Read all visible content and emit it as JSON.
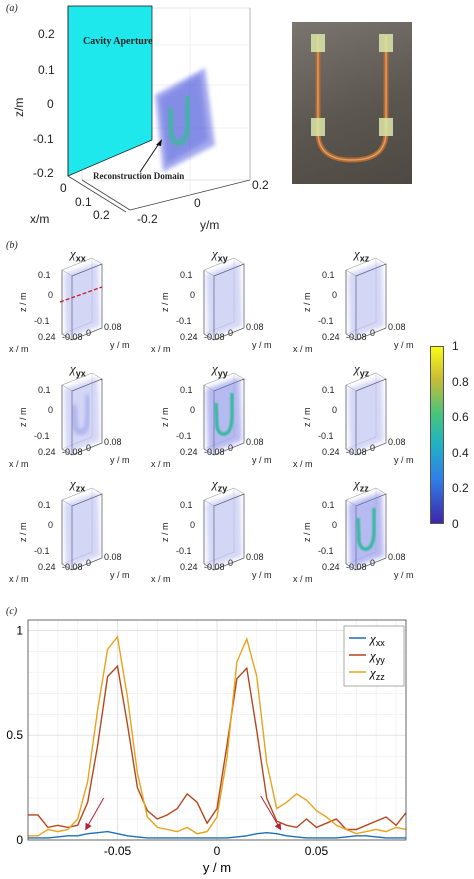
{
  "panel_a": {
    "label": "(a)",
    "z_ticks": [
      "0.2",
      "0.1",
      "0",
      "-0.1",
      "-0.2"
    ],
    "z_axis_label": "z/m",
    "x_ticks": [
      "0",
      "0.1",
      "0.2"
    ],
    "x_axis_label": "x/m",
    "y_ticks": [
      "-0.2",
      "0",
      "0.2"
    ],
    "y_axis_label": "y/m",
    "aperture_label": "Cavity Aperture",
    "domain_label": "Reconstruction Domain"
  },
  "panel_b": {
    "label": "(b)",
    "cells": [
      {
        "title_sub": "xx",
        "shape": "none",
        "dashed_line": true
      },
      {
        "title_sub": "xy",
        "shape": "none"
      },
      {
        "title_sub": "xz",
        "shape": "none"
      },
      {
        "title_sub": "yx",
        "shape": "faint"
      },
      {
        "title_sub": "yy",
        "shape": "u"
      },
      {
        "title_sub": "yz",
        "shape": "none"
      },
      {
        "title_sub": "zx",
        "shape": "none"
      },
      {
        "title_sub": "zy",
        "shape": "none"
      },
      {
        "title_sub": "zz",
        "shape": "u"
      }
    ],
    "chi": "χ",
    "z_ticks": [
      "0.1",
      "0",
      "-0.1"
    ],
    "z_axis_label": "z / m",
    "x_tick_a": "0.24",
    "x_tick_b": "-0.08",
    "y_tick_a": "0",
    "y_tick_b": "0.08",
    "x_axis_label": "x / m",
    "y_axis_label": "y / m",
    "colorbar_ticks": [
      "1",
      "0.8",
      "0.6",
      "0.4",
      "0.2",
      "0"
    ],
    "colormap": [
      "#3e26a8",
      "#2f7fe8",
      "#1fb3c4",
      "#47c57a",
      "#c9bc35",
      "#f9fb15"
    ]
  },
  "panel_c": {
    "label": "(c)",
    "chart_data": {
      "type": "line",
      "xlabel": "y / m",
      "ylabel": "",
      "xlim": [
        -0.095,
        0.095
      ],
      "ylim": [
        0,
        1.05
      ],
      "x_ticks": [
        -0.05,
        0,
        0.05
      ],
      "x_tick_labels": [
        "-0.05",
        "0",
        "0.05"
      ],
      "y_ticks": [
        0,
        0.5,
        1
      ],
      "y_tick_labels": [
        "0",
        "0.5",
        "1"
      ],
      "grid": true,
      "legend_position": "top-right",
      "series": [
        {
          "name": "χxx",
          "color": "#1f6fb5",
          "x": [
            -0.095,
            -0.09,
            -0.085,
            -0.08,
            -0.075,
            -0.07,
            -0.065,
            -0.06,
            -0.055,
            -0.05,
            -0.045,
            -0.04,
            -0.035,
            -0.03,
            -0.025,
            -0.02,
            -0.015,
            -0.01,
            -0.005,
            0,
            0.005,
            0.01,
            0.015,
            0.02,
            0.025,
            0.03,
            0.035,
            0.04,
            0.045,
            0.05,
            0.055,
            0.06,
            0.065,
            0.07,
            0.075,
            0.08,
            0.085,
            0.09,
            0.095
          ],
          "y": [
            0.01,
            0.01,
            0.01,
            0.015,
            0.02,
            0.02,
            0.03,
            0.035,
            0.04,
            0.03,
            0.02,
            0.015,
            0.01,
            0.01,
            0.01,
            0.01,
            0.01,
            0.01,
            0.01,
            0.01,
            0.01,
            0.015,
            0.02,
            0.03,
            0.035,
            0.03,
            0.02,
            0.015,
            0.01,
            0.01,
            0.01,
            0.01,
            0.015,
            0.02,
            0.02,
            0.015,
            0.01,
            0.01,
            0.01
          ]
        },
        {
          "name": "χyy",
          "color": "#b5471e",
          "x": [
            -0.095,
            -0.09,
            -0.085,
            -0.08,
            -0.075,
            -0.07,
            -0.065,
            -0.06,
            -0.055,
            -0.05,
            -0.045,
            -0.04,
            -0.035,
            -0.03,
            -0.025,
            -0.02,
            -0.015,
            -0.01,
            -0.005,
            0,
            0.005,
            0.01,
            0.015,
            0.02,
            0.025,
            0.03,
            0.035,
            0.04,
            0.045,
            0.05,
            0.055,
            0.06,
            0.065,
            0.07,
            0.075,
            0.08,
            0.085,
            0.09,
            0.095
          ],
          "y": [
            0.12,
            0.12,
            0.06,
            0.07,
            0.06,
            0.07,
            0.18,
            0.45,
            0.78,
            0.83,
            0.55,
            0.25,
            0.14,
            0.1,
            0.12,
            0.15,
            0.22,
            0.18,
            0.08,
            0.15,
            0.45,
            0.77,
            0.82,
            0.52,
            0.2,
            0.09,
            0.07,
            0.06,
            0.1,
            0.06,
            0.08,
            0.1,
            0.05,
            0.05,
            0.07,
            0.09,
            0.11,
            0.07,
            0.13
          ]
        },
        {
          "name": "χzz",
          "color": "#e8a31c",
          "x": [
            -0.095,
            -0.09,
            -0.085,
            -0.08,
            -0.075,
            -0.07,
            -0.065,
            -0.06,
            -0.055,
            -0.05,
            -0.045,
            -0.04,
            -0.035,
            -0.03,
            -0.025,
            -0.02,
            -0.015,
            -0.01,
            -0.005,
            0,
            0.005,
            0.01,
            0.015,
            0.02,
            0.025,
            0.03,
            0.035,
            0.04,
            0.045,
            0.05,
            0.055,
            0.06,
            0.065,
            0.07,
            0.075,
            0.08,
            0.085,
            0.09,
            0.095
          ],
          "y": [
            0.02,
            0.02,
            0.05,
            0.04,
            0.05,
            0.1,
            0.28,
            0.62,
            0.91,
            0.97,
            0.68,
            0.32,
            0.11,
            0.06,
            0.05,
            0.04,
            0.06,
            0.03,
            0.04,
            0.11,
            0.39,
            0.85,
            0.96,
            0.78,
            0.37,
            0.15,
            0.18,
            0.22,
            0.19,
            0.14,
            0.11,
            0.07,
            0.05,
            0.03,
            0.04,
            0.05,
            0.04,
            0.06,
            0.05
          ]
        }
      ],
      "annotations": [
        {
          "type": "arrow",
          "from": [
            -0.057,
            0.2
          ],
          "to": [
            -0.066,
            0.05
          ],
          "color": "#b5223a"
        },
        {
          "type": "arrow",
          "from": [
            0.022,
            0.21
          ],
          "to": [
            0.032,
            0.05
          ],
          "color": "#b5223a"
        }
      ]
    }
  }
}
